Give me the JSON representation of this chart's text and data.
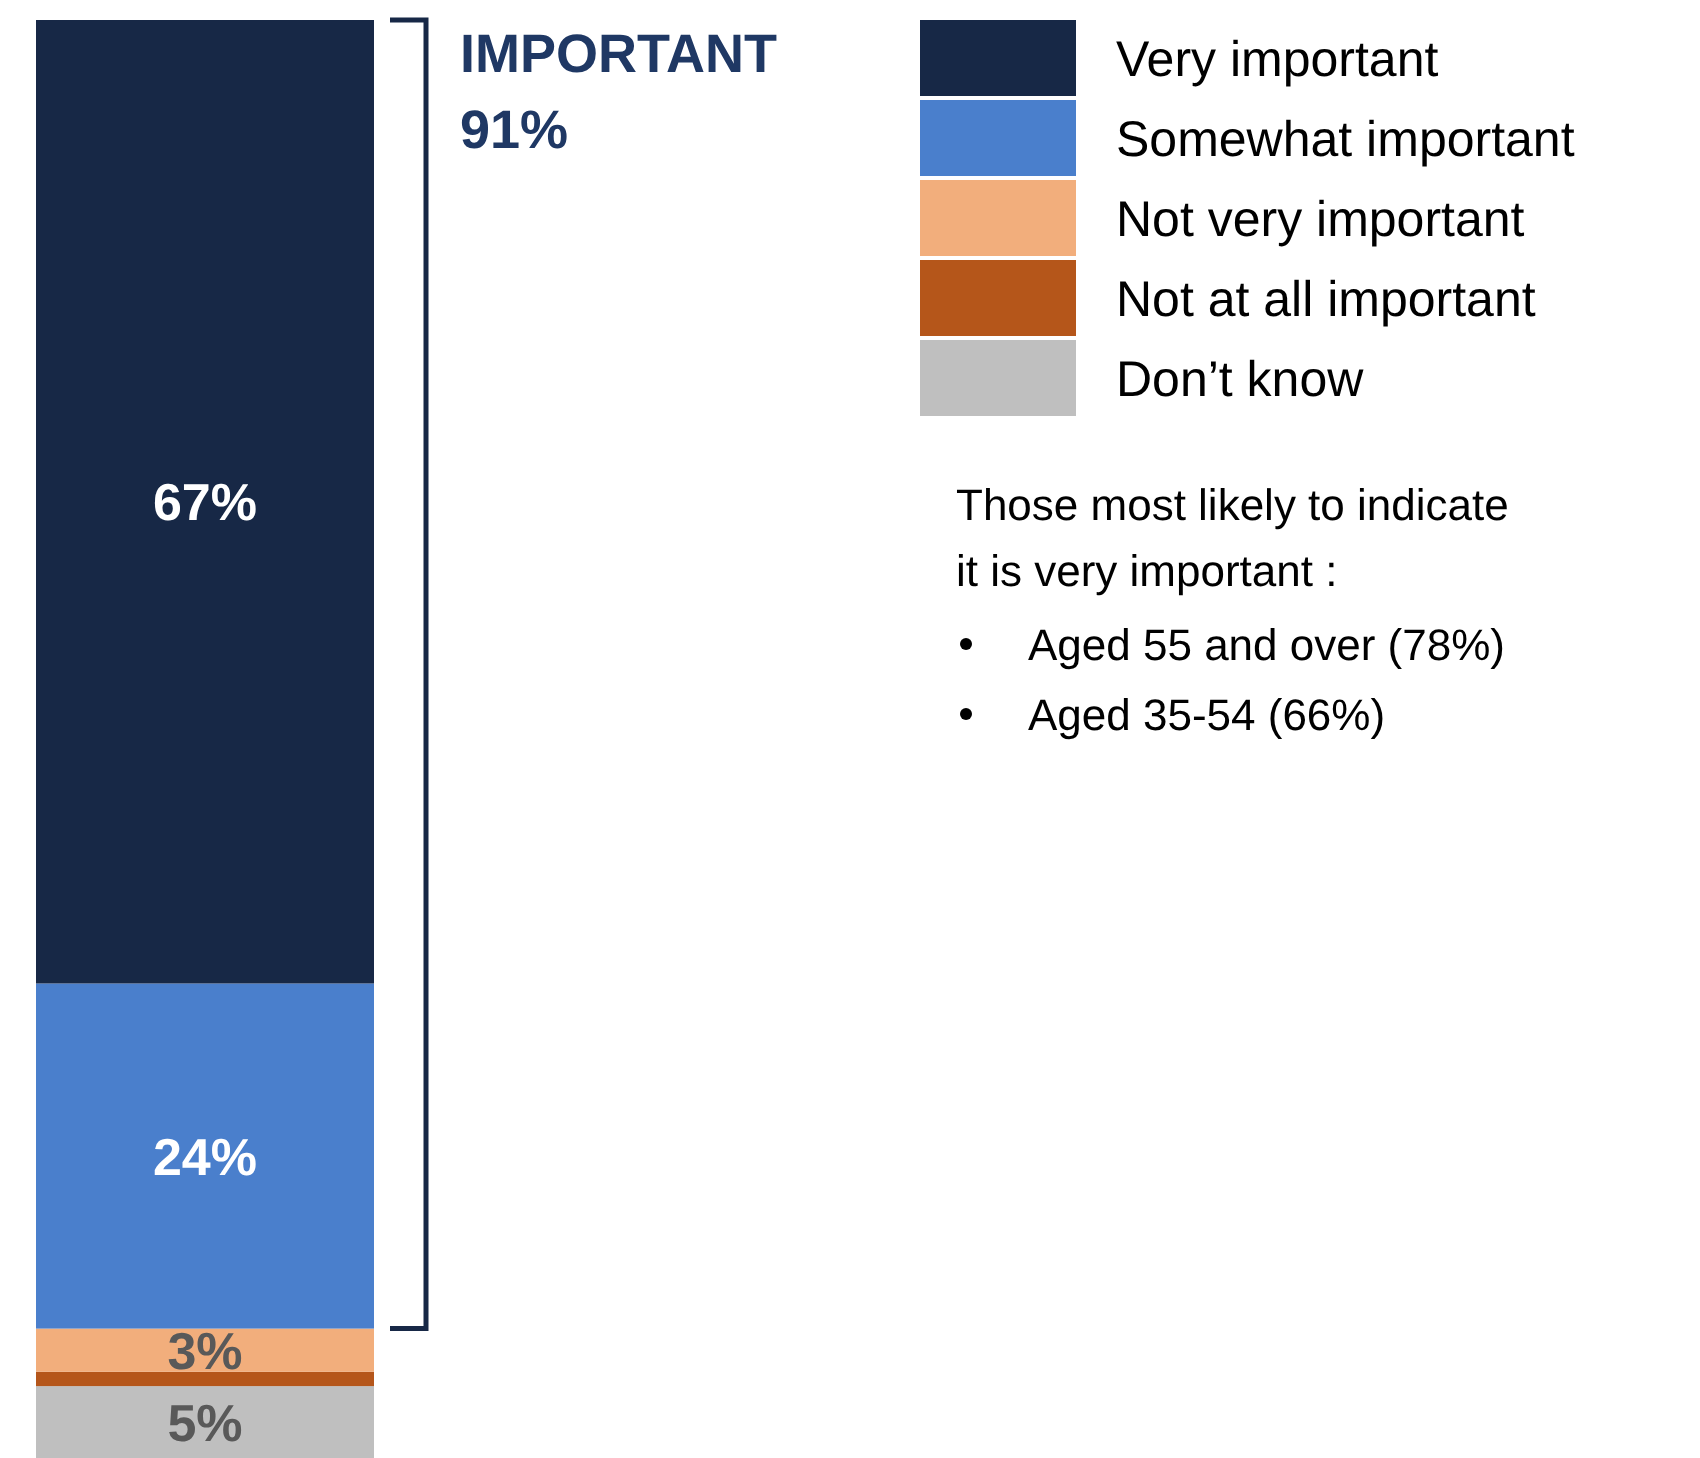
{
  "chart_data": {
    "type": "bar",
    "stacked": true,
    "categories": [
      null
    ],
    "series": [
      {
        "name": "Don’t know",
        "color": "#bfbfbf",
        "values": [
          5
        ],
        "value_labels": [
          "5%"
        ]
      },
      {
        "name": "Not at all important",
        "color": "#b5561a",
        "values": [
          1
        ],
        "value_labels": [
          null
        ]
      },
      {
        "name": "Not very important",
        "color": "#f2ae7c",
        "values": [
          3
        ],
        "value_labels": [
          "3%"
        ]
      },
      {
        "name": "Somewhat important",
        "color": "#4a7fcc",
        "values": [
          24
        ],
        "value_labels": [
          "24%"
        ]
      },
      {
        "name": "Very important",
        "color": "#172846",
        "values": [
          67
        ],
        "value_labels": [
          "67%"
        ]
      }
    ],
    "legend": "top right",
    "annotations": [
      "IMPORTANT\n91%",
      "Those most likely to indicate it is very important :",
      "Aged 55 and over (78%)",
      "Aged 35-54 (66%)"
    ]
  }
}
